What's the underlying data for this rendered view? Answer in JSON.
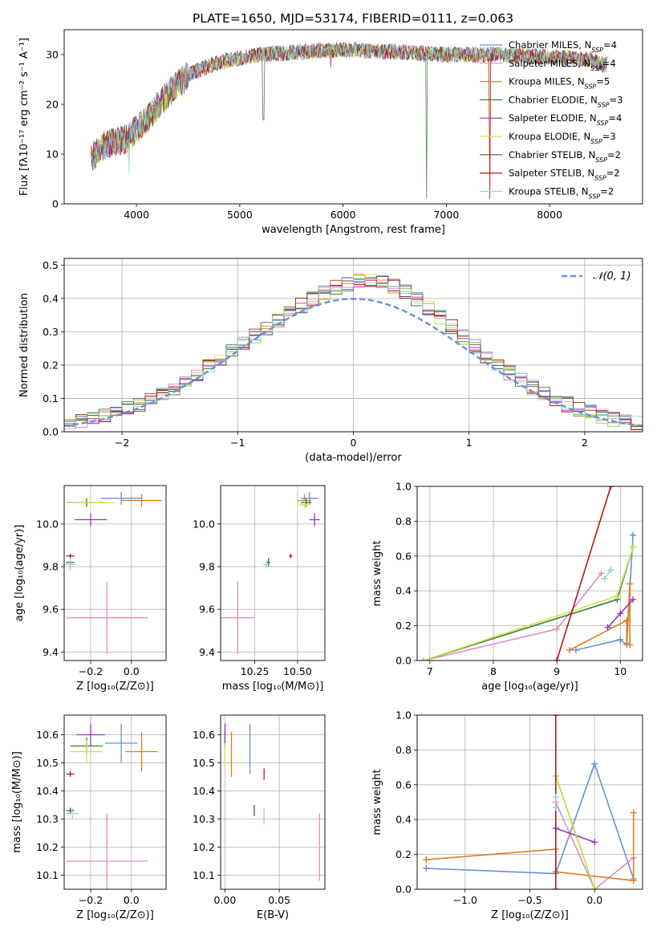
{
  "figure": {
    "title": "PLATE=1650, MJD=53174, FIBERID=0111, z=0.063",
    "colors": [
      "#6a8fd8",
      "#e08cc0",
      "#e07b1e",
      "#3a7a34",
      "#9b34b8",
      "#c8e84a",
      "#555555",
      "#b01818",
      "#8fd8d8"
    ]
  },
  "chart_data": [
    {
      "type": "line",
      "id": "spectrum",
      "xlabel": "wavelength [Angstrom, rest frame]",
      "ylabel": "Flux [fλ10⁻¹⁷ erg cm⁻² s⁻¹ A⁻¹]",
      "xlim": [
        3300,
        8900
      ],
      "ylim": [
        0,
        35
      ],
      "xticks": [
        "4000",
        "5000",
        "6000",
        "7000",
        "8000"
      ],
      "yticks": [
        "0",
        "10",
        "20",
        "30"
      ],
      "grid": false,
      "legend": "top-right",
      "x_anchor": [
        3560,
        3700,
        3900,
        4100,
        4300,
        4500,
        4800,
        5200,
        5600,
        6000,
        6500,
        7000,
        7500,
        8000,
        8400,
        8500
      ],
      "y_anchor": [
        9,
        12,
        13,
        17,
        22,
        26,
        28.5,
        30,
        30.5,
        31,
        30.5,
        30,
        30,
        29.5,
        29,
        28
      ],
      "series": [
        {
          "name": "Chabrier MILES, N_SSP=4",
          "label": "Chabrier MILES, N",
          "sub": "SSP",
          "tail": "=4"
        },
        {
          "name": "Salpeter MILES, N_SSP=4",
          "label": "Salpeter MILES, N",
          "sub": "SSP",
          "tail": "=4"
        },
        {
          "name": "Kroupa MILES, N_SSP=5",
          "label": "Kroupa MILES, N",
          "sub": "SSP",
          "tail": "=5"
        },
        {
          "name": "Chabrier ELODIE, N_SSP=3",
          "label": "Chabrier ELODIE, N",
          "sub": "SSP",
          "tail": "=3"
        },
        {
          "name": "Salpeter ELODIE, N_SSP=4",
          "label": "Salpeter ELODIE, N",
          "sub": "SSP",
          "tail": "=4"
        },
        {
          "name": "Kroupa ELODIE, N_SSP=3",
          "label": "Kroupa ELODIE, N",
          "sub": "SSP",
          "tail": "=3"
        },
        {
          "name": "Chabrier STELIB, N_SSP=2",
          "label": "Chabrier STELIB, N",
          "sub": "SSP",
          "tail": "=2"
        },
        {
          "name": "Salpeter STELIB, N_SSP=2",
          "label": "Salpeter STELIB, N",
          "sub": "SSP",
          "tail": "=2"
        },
        {
          "name": "Kroupa STELIB, N_SSP=2",
          "label": "Kroupa STELIB, N",
          "sub": "SSP",
          "tail": "=2"
        }
      ]
    },
    {
      "type": "histogram",
      "id": "residuals",
      "xlabel": "(data-model)/error",
      "ylabel": "Normed distribution",
      "xlim": [
        -2.5,
        2.5
      ],
      "ylim": [
        0,
        0.52
      ],
      "xticks": [
        "−2",
        "−1",
        "0",
        "1",
        "2"
      ],
      "yticks": [
        "0.0",
        "0.1",
        "0.2",
        "0.3",
        "0.4",
        "0.5"
      ],
      "grid": true,
      "legend": "top-right",
      "reference": {
        "name": "𝒩(0, 1)",
        "mean": 0,
        "sigma": 1
      }
    },
    {
      "type": "scatter",
      "id": "age_vs_Z",
      "xlabel": "Z [log₁₀(Z/Z⊙)]",
      "ylabel": "age  [log₁₀(age/yr)]",
      "xlim": [
        -0.33,
        0.17
      ],
      "ylim": [
        9.36,
        10.18
      ],
      "xticks": [
        "−0.2",
        "0.0"
      ],
      "yticks": [
        "9.4",
        "9.6",
        "9.8",
        "10.0"
      ],
      "grid": true,
      "points": [
        {
          "x": -0.05,
          "y": 10.12,
          "xerr": 0.1,
          "yerr": 0.03,
          "c": 0
        },
        {
          "x": -0.12,
          "y": 9.56,
          "xerr": 0.2,
          "yerr": 0.17,
          "c": 1
        },
        {
          "x": 0.05,
          "y": 10.11,
          "xerr": 0.1,
          "yerr": 0.03,
          "c": 2
        },
        {
          "x": -0.22,
          "y": 10.1,
          "xerr": 0.1,
          "yerr": 0.02,
          "c": 3
        },
        {
          "x": -0.2,
          "y": 10.02,
          "xerr": 0.08,
          "yerr": 0.03,
          "c": 4
        },
        {
          "x": -0.2,
          "y": 10.1,
          "xerr": 0.12,
          "yerr": 0.02,
          "c": 5
        },
        {
          "x": -0.3,
          "y": 9.82,
          "xerr": 0.02,
          "yerr": 0.01,
          "c": 6
        },
        {
          "x": -0.3,
          "y": 9.85,
          "xerr": 0.02,
          "yerr": 0.01,
          "c": 7
        },
        {
          "x": -0.3,
          "y": 9.81,
          "xerr": 0.03,
          "yerr": 0.03,
          "c": 8
        }
      ]
    },
    {
      "type": "scatter",
      "id": "age_vs_mass",
      "xlabel": "mass [log₁₀(M/M⊙)]",
      "ylabel": "",
      "xlim": [
        10.05,
        10.66
      ],
      "ylim": [
        9.36,
        10.18
      ],
      "xticks": [
        "10.25",
        "10.50"
      ],
      "yticks": [
        "9.4",
        "9.6",
        "9.8",
        "10.0"
      ],
      "grid": true,
      "points": [
        {
          "x": 10.57,
          "y": 10.12,
          "xerr": 0.05,
          "yerr": 0.03,
          "c": 0
        },
        {
          "x": 10.15,
          "y": 9.56,
          "xerr": 0.1,
          "yerr": 0.17,
          "c": 1
        },
        {
          "x": 10.54,
          "y": 10.11,
          "xerr": 0.04,
          "yerr": 0.03,
          "c": 2
        },
        {
          "x": 10.55,
          "y": 10.1,
          "xerr": 0.03,
          "yerr": 0.02,
          "c": 3
        },
        {
          "x": 10.6,
          "y": 10.02,
          "xerr": 0.03,
          "yerr": 0.03,
          "c": 4
        },
        {
          "x": 10.54,
          "y": 10.09,
          "xerr": 0.03,
          "yerr": 0.02,
          "c": 5
        },
        {
          "x": 10.33,
          "y": 9.82,
          "xerr": 0.01,
          "yerr": 0.02,
          "c": 6
        },
        {
          "x": 10.46,
          "y": 9.85,
          "xerr": 0.01,
          "yerr": 0.01,
          "c": 7
        },
        {
          "x": 10.32,
          "y": 9.81,
          "xerr": 0.02,
          "yerr": 0.02,
          "c": 8
        }
      ]
    },
    {
      "type": "line",
      "id": "weight_vs_age",
      "xlabel": "age  [log₁₀(age/yr)]",
      "ylabel": "mass weight",
      "xlim": [
        6.8,
        10.35
      ],
      "ylim": [
        0,
        1
      ],
      "xticks": [
        "7",
        "8",
        "9",
        "10"
      ],
      "yticks": [
        "0.0",
        "0.2",
        "0.4",
        "0.6",
        "0.8",
        "1.0"
      ],
      "grid": true,
      "series": [
        {
          "c": 0,
          "x": [
            9.3,
            10.0,
            10.1,
            10.2
          ],
          "y": [
            0.06,
            0.12,
            0.09,
            0.72
          ]
        },
        {
          "c": 1,
          "x": [
            6.9,
            9.0,
            9.7
          ],
          "y": [
            0.0,
            0.18,
            0.5
          ]
        },
        {
          "c": 2,
          "x": [
            9.2,
            10.1,
            10.1,
            10.15,
            10.15
          ],
          "y": [
            0.06,
            0.23,
            0.1,
            0.44,
            0.09
          ]
        },
        {
          "c": 3,
          "x": [
            6.9,
            9.95,
            10.2
          ],
          "y": [
            0.0,
            0.35,
            0.65
          ]
        },
        {
          "c": 4,
          "x": [
            9.8,
            10.0,
            10.2
          ],
          "y": [
            0.19,
            0.27,
            0.35
          ]
        },
        {
          "c": 5,
          "x": [
            6.9,
            9.95,
            10.2
          ],
          "y": [
            0.0,
            0.37,
            0.65
          ]
        },
        {
          "c": 7,
          "x": [
            9.0,
            9.85
          ],
          "y": [
            0.0,
            1.0
          ]
        },
        {
          "c": 8,
          "x": [
            9.75,
            9.85
          ],
          "y": [
            0.47,
            0.52
          ]
        }
      ]
    },
    {
      "type": "scatter",
      "id": "mass_vs_Z",
      "xlabel": "Z [log₁₀(Z/Z⊙)]",
      "ylabel": "mass [log₁₀(M/M⊙)]",
      "xlim": [
        -0.33,
        0.17
      ],
      "ylim": [
        10.05,
        10.67
      ],
      "xticks": [
        "−0.2",
        "0.0"
      ],
      "yticks": [
        "10.1",
        "10.2",
        "10.3",
        "10.4",
        "10.5",
        "10.6"
      ],
      "grid": true,
      "points": [
        {
          "x": -0.05,
          "y": 10.57,
          "xerr": 0.08,
          "yerr": 0.07,
          "c": 0
        },
        {
          "x": -0.12,
          "y": 10.15,
          "xerr": 0.2,
          "yerr": 0.17,
          "c": 1
        },
        {
          "x": 0.05,
          "y": 10.54,
          "xerr": 0.08,
          "yerr": 0.07,
          "c": 2
        },
        {
          "x": -0.22,
          "y": 10.56,
          "xerr": 0.08,
          "yerr": 0.03,
          "c": 3
        },
        {
          "x": -0.2,
          "y": 10.6,
          "xerr": 0.07,
          "yerr": 0.04,
          "c": 4
        },
        {
          "x": -0.22,
          "y": 10.54,
          "xerr": 0.08,
          "yerr": 0.04,
          "c": 5
        },
        {
          "x": -0.3,
          "y": 10.33,
          "xerr": 0.02,
          "yerr": 0.01,
          "c": 6
        },
        {
          "x": -0.3,
          "y": 10.46,
          "xerr": 0.02,
          "yerr": 0.01,
          "c": 7
        },
        {
          "x": -0.29,
          "y": 10.32,
          "xerr": 0.03,
          "yerr": 0.02,
          "c": 8
        }
      ]
    },
    {
      "type": "scatter",
      "id": "mass_vs_ebv",
      "xlabel": "E(B-V)",
      "ylabel": "",
      "xlim": [
        -0.004,
        0.092
      ],
      "ylim": [
        10.05,
        10.67
      ],
      "xticks": [
        "0.00",
        "0.05"
      ],
      "yticks": [
        "10.1",
        "10.2",
        "10.3",
        "10.4",
        "10.5",
        "10.6"
      ],
      "grid": true,
      "points": [
        {
          "x": 0.023,
          "y": 10.55,
          "xerr": 0,
          "yerr": 0.09,
          "c": 0
        },
        {
          "x": 0.087,
          "y": 10.2,
          "xerr": 0,
          "yerr": 0.12,
          "c": 1
        },
        {
          "x": 0.006,
          "y": 10.53,
          "xerr": 0,
          "yerr": 0.08,
          "c": 2
        },
        {
          "x": 0.0,
          "y": 10.58,
          "xerr": 0,
          "yerr": 0.03,
          "c": 3
        },
        {
          "x": 0.0,
          "y": 10.6,
          "xerr": 0,
          "yerr": 0.04,
          "c": 4
        },
        {
          "x": 0.0,
          "y": 10.53,
          "xerr": 0,
          "yerr": 0.04,
          "c": 5
        },
        {
          "x": 0.027,
          "y": 10.33,
          "xerr": 0,
          "yerr": 0.02,
          "c": 6
        },
        {
          "x": 0.036,
          "y": 10.46,
          "xerr": 0,
          "yerr": 0.02,
          "c": 7
        },
        {
          "x": 0.036,
          "y": 10.31,
          "xerr": 0,
          "yerr": 0.03,
          "c": 8
        }
      ]
    },
    {
      "type": "line",
      "id": "weight_vs_Z",
      "xlabel": "Z [log₁₀(Z/Z⊙)]",
      "ylabel": "mass weight",
      "xlim": [
        -1.37,
        0.37
      ],
      "ylim": [
        0,
        1
      ],
      "xticks": [
        "−1.0",
        "−0.5",
        "0.0"
      ],
      "yticks": [
        "0.0",
        "0.2",
        "0.4",
        "0.6",
        "0.8",
        "1.0"
      ],
      "grid": true,
      "series": [
        {
          "c": 0,
          "x": [
            -1.3,
            -0.3,
            0.0,
            0.3
          ],
          "y": [
            0.12,
            0.09,
            0.72,
            0.06
          ]
        },
        {
          "c": 1,
          "x": [
            -0.3,
            0.0,
            0.3
          ],
          "y": [
            0.5,
            0.0,
            0.18
          ]
        },
        {
          "c": 2,
          "x": [
            -1.3,
            -0.3,
            -0.3,
            0.3,
            0.3
          ],
          "y": [
            0.17,
            0.23,
            0.1,
            0.05,
            0.44
          ]
        },
        {
          "c": 3,
          "x": [
            -0.3,
            0.0
          ],
          "y": [
            0.65,
            0.0
          ]
        },
        {
          "c": 4,
          "x": [
            -0.3,
            0.0
          ],
          "y": [
            0.35,
            0.27
          ]
        },
        {
          "c": 5,
          "x": [
            -0.3,
            0.0
          ],
          "y": [
            0.65,
            0.0
          ]
        },
        {
          "c": 7,
          "x": [
            -0.3,
            -0.3
          ],
          "y": [
            0.0,
            1.0
          ]
        },
        {
          "c": 8,
          "x": [
            -0.3,
            -0.3
          ],
          "y": [
            0.47,
            0.53
          ]
        }
      ]
    }
  ]
}
